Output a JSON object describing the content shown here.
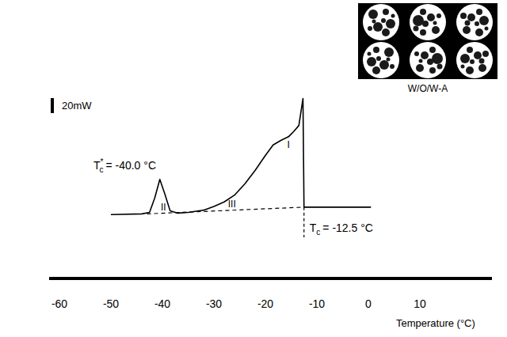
{
  "chart_data": {
    "type": "line",
    "xlabel": "Temperature (°C)",
    "xlim": [
      -62,
      24
    ],
    "xticks": [
      -60,
      -50,
      -40,
      -30,
      -20,
      -10,
      0,
      10
    ],
    "ylim": [
      -5,
      165
    ],
    "tick_labels": "x",
    "grid": false,
    "series": [
      {
        "x": [
          -50,
          -44,
          -42.5,
          -41.5,
          -40.5,
          -39.5,
          -38.5,
          -37,
          -35,
          -32,
          -30,
          -28,
          -26,
          -24,
          -22,
          -20,
          -18.5,
          -17,
          -15.5,
          -14.5,
          -13.5,
          -12.7,
          -12.5,
          -10,
          0,
          0.5
        ],
        "values": [
          1,
          2,
          4,
          23,
          48,
          28,
          6,
          3,
          4,
          7,
          12,
          18,
          27,
          42,
          60,
          80,
          94,
          100,
          105,
          112,
          120,
          156,
          11,
          11,
          11,
          11
        ],
        "color": "#000000",
        "line_style": "solid"
      },
      {
        "x": [
          -43,
          -12.5
        ],
        "values": [
          2,
          11
        ],
        "color": "#000000",
        "line_style": "dashed"
      }
    ],
    "scale_bar": {
      "value": 20,
      "label": "20mW"
    },
    "annotations": [
      {
        "symbol": "T",
        "subscript": "c",
        "superscript": "*",
        "text": "= -40.0 °C",
        "x": -40.0
      },
      {
        "symbol": "T",
        "subscript": "c",
        "text": "= -12.5 °C",
        "x": -12.5
      },
      {
        "text": "I",
        "x": -15.5,
        "y": 90
      },
      {
        "text": "II",
        "x": -39.8,
        "y": 7
      },
      {
        "text": "III",
        "x": -26.5,
        "y": 11
      }
    ],
    "inset": {
      "label": "W/O/W-A"
    }
  }
}
